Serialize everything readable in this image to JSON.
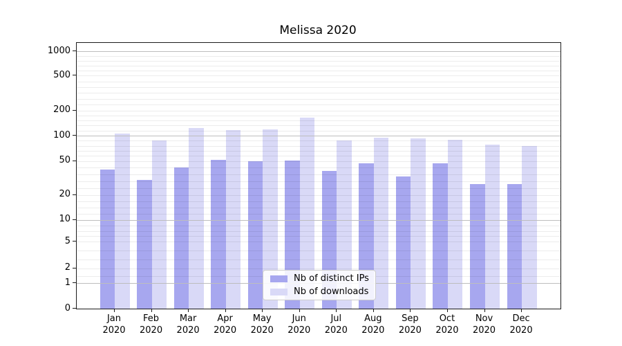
{
  "title": "Melissa 2020",
  "chart_data": {
    "type": "bar",
    "title": "Melissa 2020",
    "categories": [
      "Jan",
      "Feb",
      "Mar",
      "Apr",
      "May",
      "Jun",
      "Jul",
      "Aug",
      "Sep",
      "Oct",
      "Nov",
      "Dec"
    ],
    "category_year": "2020",
    "series": [
      {
        "name": "Nb of distinct IPs",
        "color": "#a7a7ef",
        "values": [
          40,
          30,
          42,
          52,
          50,
          51,
          38,
          47,
          33,
          47,
          27,
          27
        ]
      },
      {
        "name": "Nb of downloads",
        "color": "#d9d9f7",
        "values": [
          105,
          88,
          124,
          117,
          118,
          163,
          87,
          94,
          92,
          90,
          78,
          75
        ]
      }
    ],
    "yticks": [
      0,
      1,
      2,
      5,
      10,
      20,
      50,
      100,
      200,
      500,
      1000
    ],
    "major_grid_values": [
      1,
      10,
      100,
      1000
    ],
    "yscale": "symlog",
    "ylim": [
      0,
      1300
    ],
    "xlabel": "",
    "ylabel": "",
    "grid": true,
    "legend_position": "lower center"
  },
  "legend": {
    "entries": [
      {
        "label": "Nb of distinct IPs",
        "color": "#a7a7ef"
      },
      {
        "label": "Nb of downloads",
        "color": "#d9d9f7"
      }
    ]
  }
}
